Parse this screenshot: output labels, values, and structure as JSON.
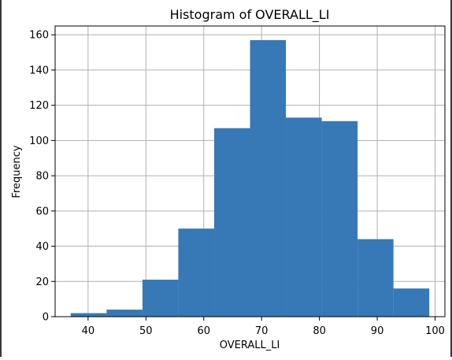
{
  "chart_data": {
    "type": "bar",
    "title": "Histogram of OVERALL_LI",
    "xlabel": "OVERALL_LI",
    "ylabel": "Frequency",
    "xlim": [
      34.3,
      101.7
    ],
    "ylim": [
      0,
      165
    ],
    "grid": true,
    "x_ticks": [
      40,
      50,
      60,
      70,
      80,
      90,
      100
    ],
    "y_ticks": [
      0,
      20,
      40,
      60,
      80,
      100,
      120,
      140,
      160
    ],
    "bin_edges": [
      37.0,
      43.2,
      49.4,
      55.6,
      61.8,
      68.0,
      74.2,
      80.4,
      86.6,
      92.8,
      99.0
    ],
    "values": [
      2,
      4,
      21,
      50,
      107,
      157,
      113,
      111,
      44,
      16
    ],
    "bar_color": "#3778b6",
    "grid_color": "#b0b0b0"
  }
}
